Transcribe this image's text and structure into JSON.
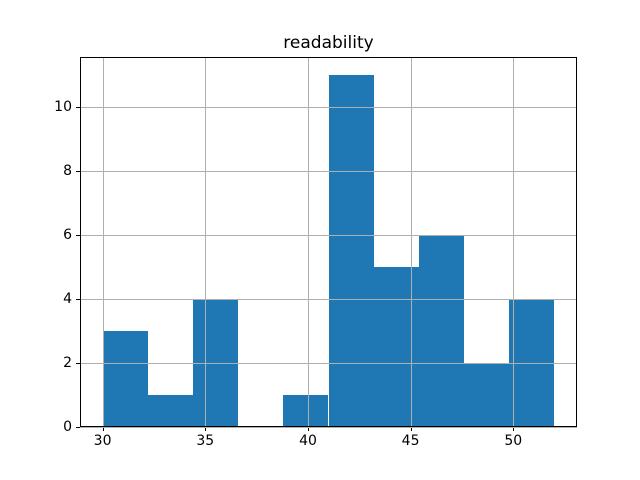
{
  "chart_data": {
    "type": "bar",
    "subtype": "histogram",
    "title": "readability",
    "xlabel": "",
    "ylabel": "",
    "bin_edges": [
      30,
      32.2,
      34.4,
      36.6,
      38.8,
      41,
      43.2,
      45.4,
      47.6,
      49.8,
      52
    ],
    "counts": [
      3,
      1,
      4,
      0,
      1,
      11,
      5,
      6,
      2,
      4
    ],
    "xticks": [
      30,
      35,
      40,
      45,
      50
    ],
    "yticks": [
      0,
      2,
      4,
      6,
      8,
      10
    ],
    "xlim": [
      28.9,
      53.1
    ],
    "ylim": [
      0,
      11.55
    ],
    "grid": true,
    "grid_above_bars": true,
    "legend": null,
    "colors": {
      "bar": "#1f77b4",
      "grid": "#b0b0b0",
      "frame": "#000000",
      "text": "#000000",
      "background": "#ffffff"
    }
  }
}
